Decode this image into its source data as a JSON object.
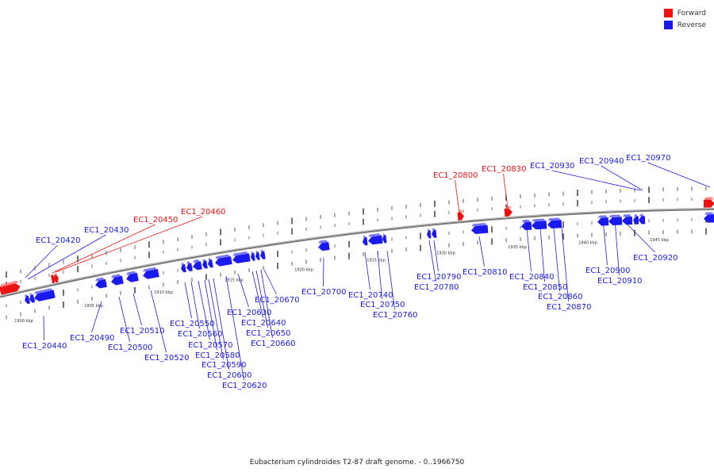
{
  "legend": {
    "forward_label": "Forward",
    "reverse_label": "Reverse",
    "forward_color": "#ee1111",
    "reverse_color": "#1a1aee"
  },
  "caption": "Eubacterium cylindroides T2-87 draft genome. - 0..1966750",
  "colors": {
    "forward": "#ee1111",
    "reverse": "#1a1aee",
    "backbone": "#777777"
  },
  "scale_labels": [
    "1900 kbp",
    "1905 kbp",
    "1910 kbp",
    "1915 kbp",
    "1920 kbp",
    "1925 kbp",
    "1930 kbp",
    "1935 kbp",
    "1940 kbp",
    "1945 kbp"
  ],
  "genes": [
    {
      "id": "EC1_20420",
      "strand": "reverse"
    },
    {
      "id": "EC1_20430",
      "strand": "reverse"
    },
    {
      "id": "EC1_20440",
      "strand": "reverse"
    },
    {
      "id": "EC1_20450",
      "strand": "forward"
    },
    {
      "id": "EC1_20460",
      "strand": "forward"
    },
    {
      "id": "EC1_20490",
      "strand": "reverse"
    },
    {
      "id": "EC1_20500",
      "strand": "reverse"
    },
    {
      "id": "EC1_20510",
      "strand": "reverse"
    },
    {
      "id": "EC1_20520",
      "strand": "reverse"
    },
    {
      "id": "EC1_20550",
      "strand": "reverse"
    },
    {
      "id": "EC1_20560",
      "strand": "reverse"
    },
    {
      "id": "EC1_20570",
      "strand": "reverse"
    },
    {
      "id": "EC1_20580",
      "strand": "reverse"
    },
    {
      "id": "EC1_20590",
      "strand": "reverse"
    },
    {
      "id": "EC1_20600",
      "strand": "reverse"
    },
    {
      "id": "EC1_20620",
      "strand": "reverse"
    },
    {
      "id": "EC1_20630",
      "strand": "reverse"
    },
    {
      "id": "EC1_20640",
      "strand": "reverse"
    },
    {
      "id": "EC1_20650",
      "strand": "reverse"
    },
    {
      "id": "EC1_20660",
      "strand": "reverse"
    },
    {
      "id": "EC1_20670",
      "strand": "reverse"
    },
    {
      "id": "EC1_20700",
      "strand": "reverse"
    },
    {
      "id": "EC1_20740",
      "strand": "reverse"
    },
    {
      "id": "EC1_20750",
      "strand": "reverse"
    },
    {
      "id": "EC1_20760",
      "strand": "reverse"
    },
    {
      "id": "EC1_20780",
      "strand": "reverse"
    },
    {
      "id": "EC1_20790",
      "strand": "reverse"
    },
    {
      "id": "EC1_20800",
      "strand": "forward"
    },
    {
      "id": "EC1_20810",
      "strand": "reverse"
    },
    {
      "id": "EC1_20830",
      "strand": "forward"
    },
    {
      "id": "EC1_20840",
      "strand": "reverse"
    },
    {
      "id": "EC1_20850",
      "strand": "reverse"
    },
    {
      "id": "EC1_20860",
      "strand": "reverse"
    },
    {
      "id": "EC1_20870",
      "strand": "reverse"
    },
    {
      "id": "EC1_20900",
      "strand": "reverse"
    },
    {
      "id": "EC1_20910",
      "strand": "reverse"
    },
    {
      "id": "EC1_20920",
      "strand": "reverse"
    },
    {
      "id": "EC1_20930",
      "strand": "reverse"
    },
    {
      "id": "EC1_20940",
      "strand": "reverse"
    },
    {
      "id": "EC1_20970",
      "strand": "reverse"
    }
  ]
}
